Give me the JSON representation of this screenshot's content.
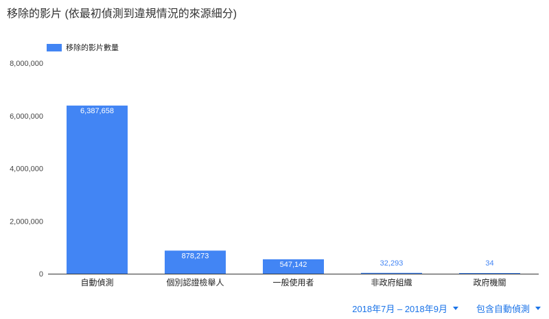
{
  "title": "移除的影片 (依最初偵測到違規情況的來源細分)",
  "legend": {
    "label": "移除的影片數量",
    "color": "#4285f4"
  },
  "filters": [
    {
      "label": "2018年7月 – 2018年9月"
    },
    {
      "label": "包含自動偵測"
    }
  ],
  "chart_data": {
    "type": "bar",
    "categories": [
      "自動偵測",
      "個別認證檢舉人",
      "一般使用者",
      "非政府組織",
      "政府機關"
    ],
    "series": [
      {
        "name": "移除的影片數量",
        "values": [
          6387658,
          878273,
          547142,
          32293,
          34
        ],
        "data_labels": [
          "6,387,658",
          "878,273",
          "547,142",
          "32,293",
          "34"
        ]
      }
    ],
    "y_ticks": [
      0,
      2000000,
      4000000,
      6000000,
      8000000
    ],
    "y_tick_labels": [
      "0",
      "2,000,000",
      "4,000,000",
      "6,000,000",
      "8,000,000"
    ],
    "ylim": [
      0,
      8000000
    ],
    "colors": {
      "bar": "#4285f4",
      "label_inside": "#ffffff",
      "label_outside": "#4285f4",
      "axis_text": "#444444"
    },
    "grid": false,
    "legend_position": "top-left"
  }
}
